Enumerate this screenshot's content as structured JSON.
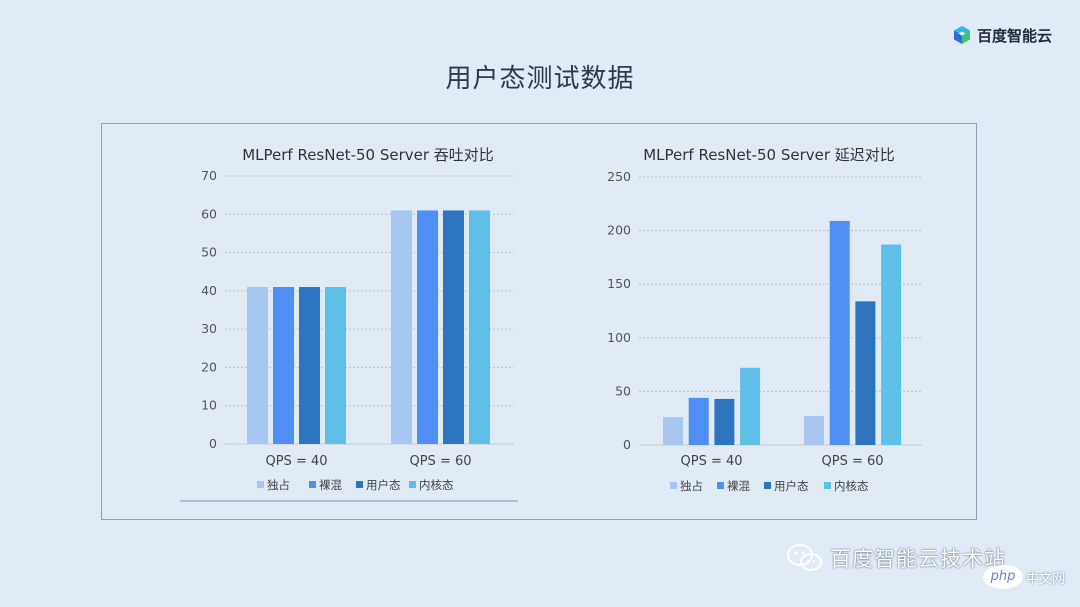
{
  "slide": {
    "title": "用户态测试数据"
  },
  "brand": {
    "name": "百度智能云"
  },
  "watermark": {
    "text": "百度智能云技术站",
    "site_badge": "php",
    "site_text": "中文网"
  },
  "colors": {
    "独占": "#a7c6f0",
    "裸混": "#4f8ef2",
    "用户态": "#2e75c0",
    "内核态": "#5fbfe9"
  },
  "chart_data": [
    {
      "type": "bar",
      "title": "MLPerf ResNet-50 Server 吞吐对比",
      "categories": [
        "QPS = 40",
        "QPS = 60"
      ],
      "series": [
        {
          "name": "独占",
          "values": [
            41,
            61
          ]
        },
        {
          "name": "裸混",
          "values": [
            41,
            61
          ]
        },
        {
          "name": "用户态",
          "values": [
            41,
            61
          ]
        },
        {
          "name": "内核态",
          "values": [
            41,
            61
          ]
        }
      ],
      "ylim": [
        0,
        70
      ],
      "yticks": [
        0,
        10,
        20,
        30,
        40,
        50,
        60,
        70
      ],
      "xlabel": "",
      "ylabel": "",
      "grid": true,
      "legend": "bottom"
    },
    {
      "type": "bar",
      "title": "MLPerf ResNet-50 Server 延迟对比",
      "categories": [
        "QPS = 40",
        "QPS = 60"
      ],
      "series": [
        {
          "name": "独占",
          "values": [
            26,
            27
          ]
        },
        {
          "name": "裸混",
          "values": [
            44,
            209
          ]
        },
        {
          "name": "用户态",
          "values": [
            43,
            134
          ]
        },
        {
          "name": "内核态",
          "values": [
            72,
            187
          ]
        }
      ],
      "ylim": [
        0,
        250
      ],
      "yticks": [
        0,
        50,
        100,
        150,
        200,
        250
      ],
      "xlabel": "",
      "ylabel": "",
      "grid": true,
      "legend": "bottom"
    }
  ]
}
